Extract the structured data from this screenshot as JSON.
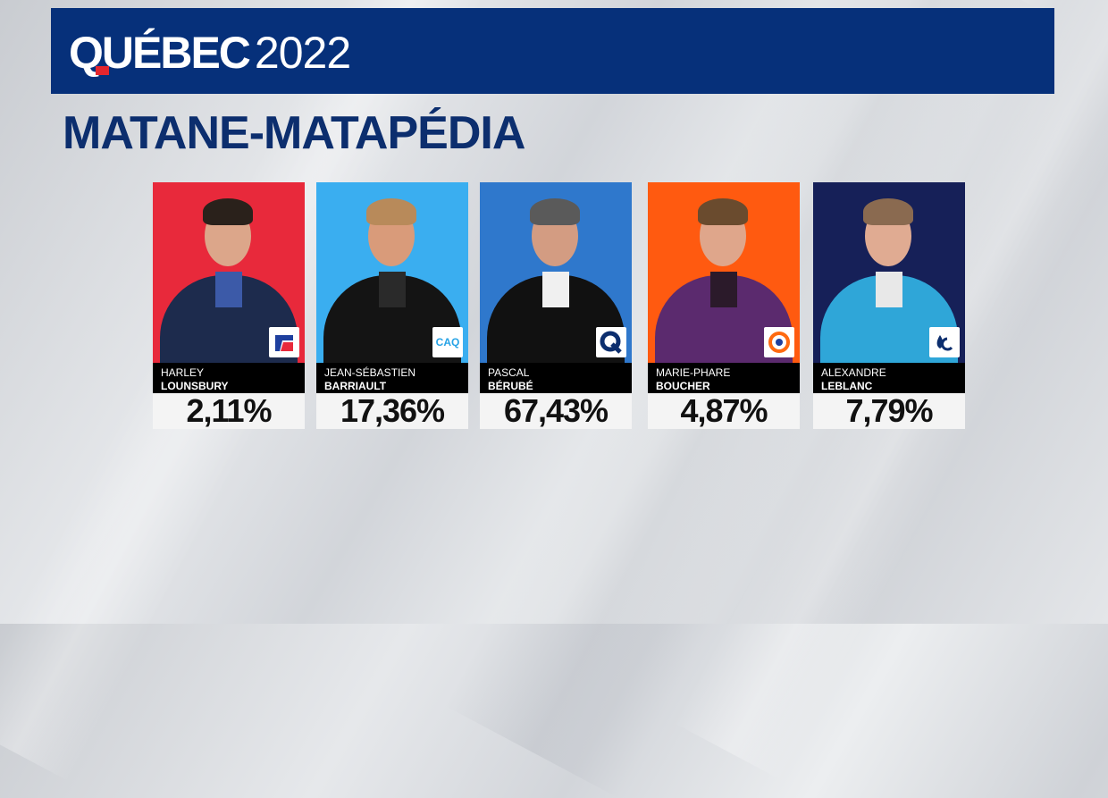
{
  "header": {
    "brand_word": "QUÉBEC",
    "brand_year": "2022"
  },
  "district": "MATANE-MATAPÉDIA",
  "candidates": [
    {
      "first": "HARLEY",
      "last": "LOUNSBURY",
      "percent": "2,11%",
      "party_logo": "plq-logo",
      "bg": "#e8293b"
    },
    {
      "first": "JEAN-SÉBASTIEN",
      "last": "BARRIAULT",
      "percent": "17,36%",
      "party_logo": "caq-logo",
      "logo_text": "CAQ",
      "bg": "#3aaef0"
    },
    {
      "first": "PASCAL",
      "last": "BÉRUBÉ",
      "percent": "67,43%",
      "party_logo": "pq-logo",
      "bg": "#2f78cc"
    },
    {
      "first": "MARIE-PHARE",
      "last": "BOUCHER",
      "percent": "4,87%",
      "party_logo": "qs-logo",
      "bg": "#ff5a10"
    },
    {
      "first": "ALEXANDRE",
      "last": "LEBLANC",
      "percent": "7,79%",
      "party_logo": "pcq-logo",
      "bg": "#162058"
    }
  ]
}
